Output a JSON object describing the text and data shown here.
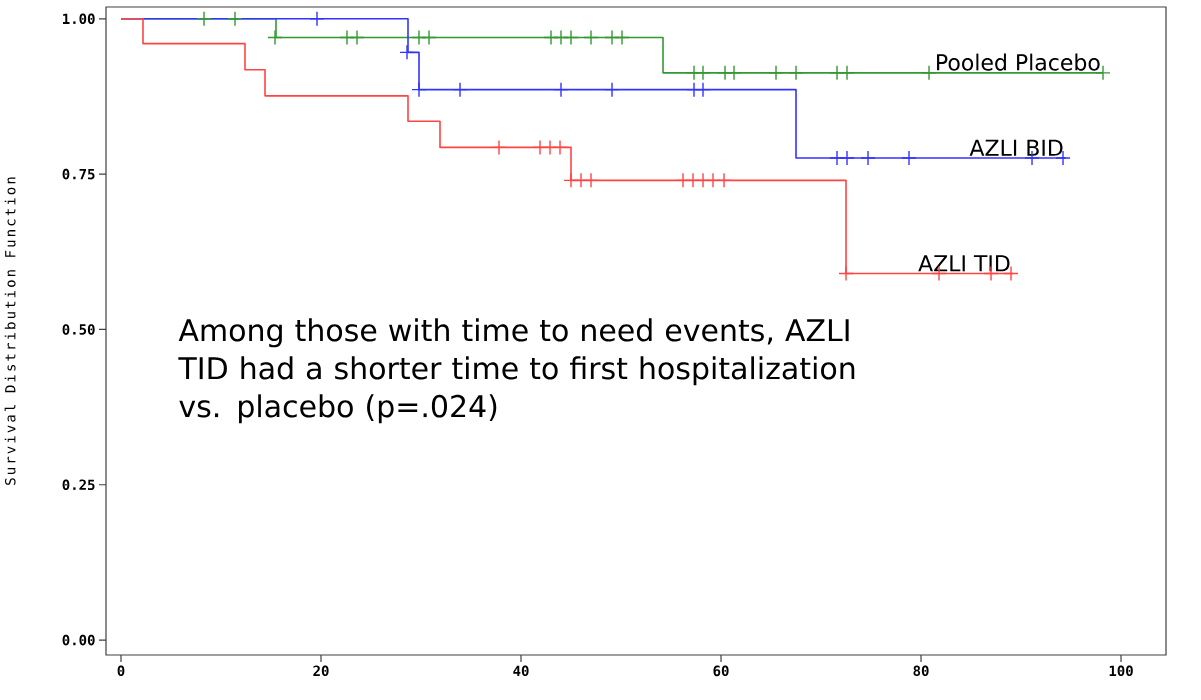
{
  "chart_data": {
    "type": "step",
    "ylabel": "Survival Distribution Function",
    "xlim": [
      -1.5,
      104.5
    ],
    "ylim": [
      -0.024,
      1.019
    ],
    "xticks": [
      0,
      20,
      40,
      60,
      80,
      100
    ],
    "yticks": [
      {
        "value": 0,
        "label": "0.00"
      },
      {
        "value": 0.25,
        "label": "0.25"
      },
      {
        "value": 0.5,
        "label": "0.50"
      },
      {
        "value": 0.75,
        "label": "0.75"
      },
      {
        "value": 1,
        "label": "1.00"
      }
    ],
    "grid": false,
    "legend": false,
    "annotations": [
      "Among those with time to need events, AZLI TID had a shorter time to first hospitalization vs. placebo (p=.024)"
    ],
    "series": [
      {
        "name": "Pooled Placebo",
        "color": "#339933",
        "x": [
          0,
          15.5,
          54.2,
          98.2
        ],
        "values": [
          1,
          0.97,
          0.913,
          0.913
        ]
      },
      {
        "name": "AZLI BID",
        "color": "#3333ff",
        "x": [
          0,
          28.7,
          29.8,
          67.5,
          94.5
        ],
        "values": [
          1,
          0.946,
          0.886,
          0.776,
          0.776
        ]
      },
      {
        "name": "AZLI TID",
        "color": "#ff4444",
        "x": [
          0,
          2.2,
          12.4,
          14.4,
          28.7,
          31.9,
          45.0,
          72.5,
          89.2
        ],
        "values": [
          1,
          0.96,
          0.918,
          0.876,
          0.835,
          0.793,
          0.74,
          0.59,
          0.59
        ]
      },
      {
        "type": "scatter",
        "marker": "cross",
        "color": "#339933",
        "x": [
          8.3,
          11.4,
          15.4,
          22.6,
          23.6,
          29.8,
          30.8,
          43.0,
          44.0,
          45.0,
          47.0,
          49.1,
          50.1,
          57.3,
          58.2,
          60.4,
          61.3,
          65.5,
          67.5,
          71.6,
          72.6,
          80.8,
          98.2
        ],
        "values": [
          1,
          1,
          0.97,
          0.97,
          0.97,
          0.97,
          0.97,
          0.97,
          0.97,
          0.97,
          0.97,
          0.97,
          0.97,
          0.913,
          0.913,
          0.913,
          0.913,
          0.913,
          0.913,
          0.913,
          0.913,
          0.913,
          0.913
        ]
      },
      {
        "type": "scatter",
        "marker": "cross",
        "color": "#3333ff",
        "x": [
          19.6,
          28.6,
          29.8,
          33.9,
          44.0,
          49.1,
          57.3,
          58.2,
          71.6,
          72.6,
          74.7,
          78.8,
          91.1,
          94.2
        ],
        "values": [
          1,
          0.946,
          0.886,
          0.886,
          0.886,
          0.886,
          0.886,
          0.886,
          0.776,
          0.776,
          0.776,
          0.776,
          0.776,
          0.776
        ]
      },
      {
        "type": "scatter",
        "marker": "cross",
        "color": "#ff4444",
        "x": [
          37.8,
          41.9,
          42.9,
          43.9,
          45.0,
          46.0,
          47.0,
          56.2,
          57.2,
          58.2,
          59.2,
          60.3,
          72.5,
          81.8,
          87.0,
          89.0
        ],
        "values": [
          0.793,
          0.793,
          0.793,
          0.793,
          0.74,
          0.74,
          0.74,
          0.74,
          0.74,
          0.74,
          0.74,
          0.74,
          0.59,
          0.59,
          0.59,
          0.59
        ]
      }
    ]
  }
}
